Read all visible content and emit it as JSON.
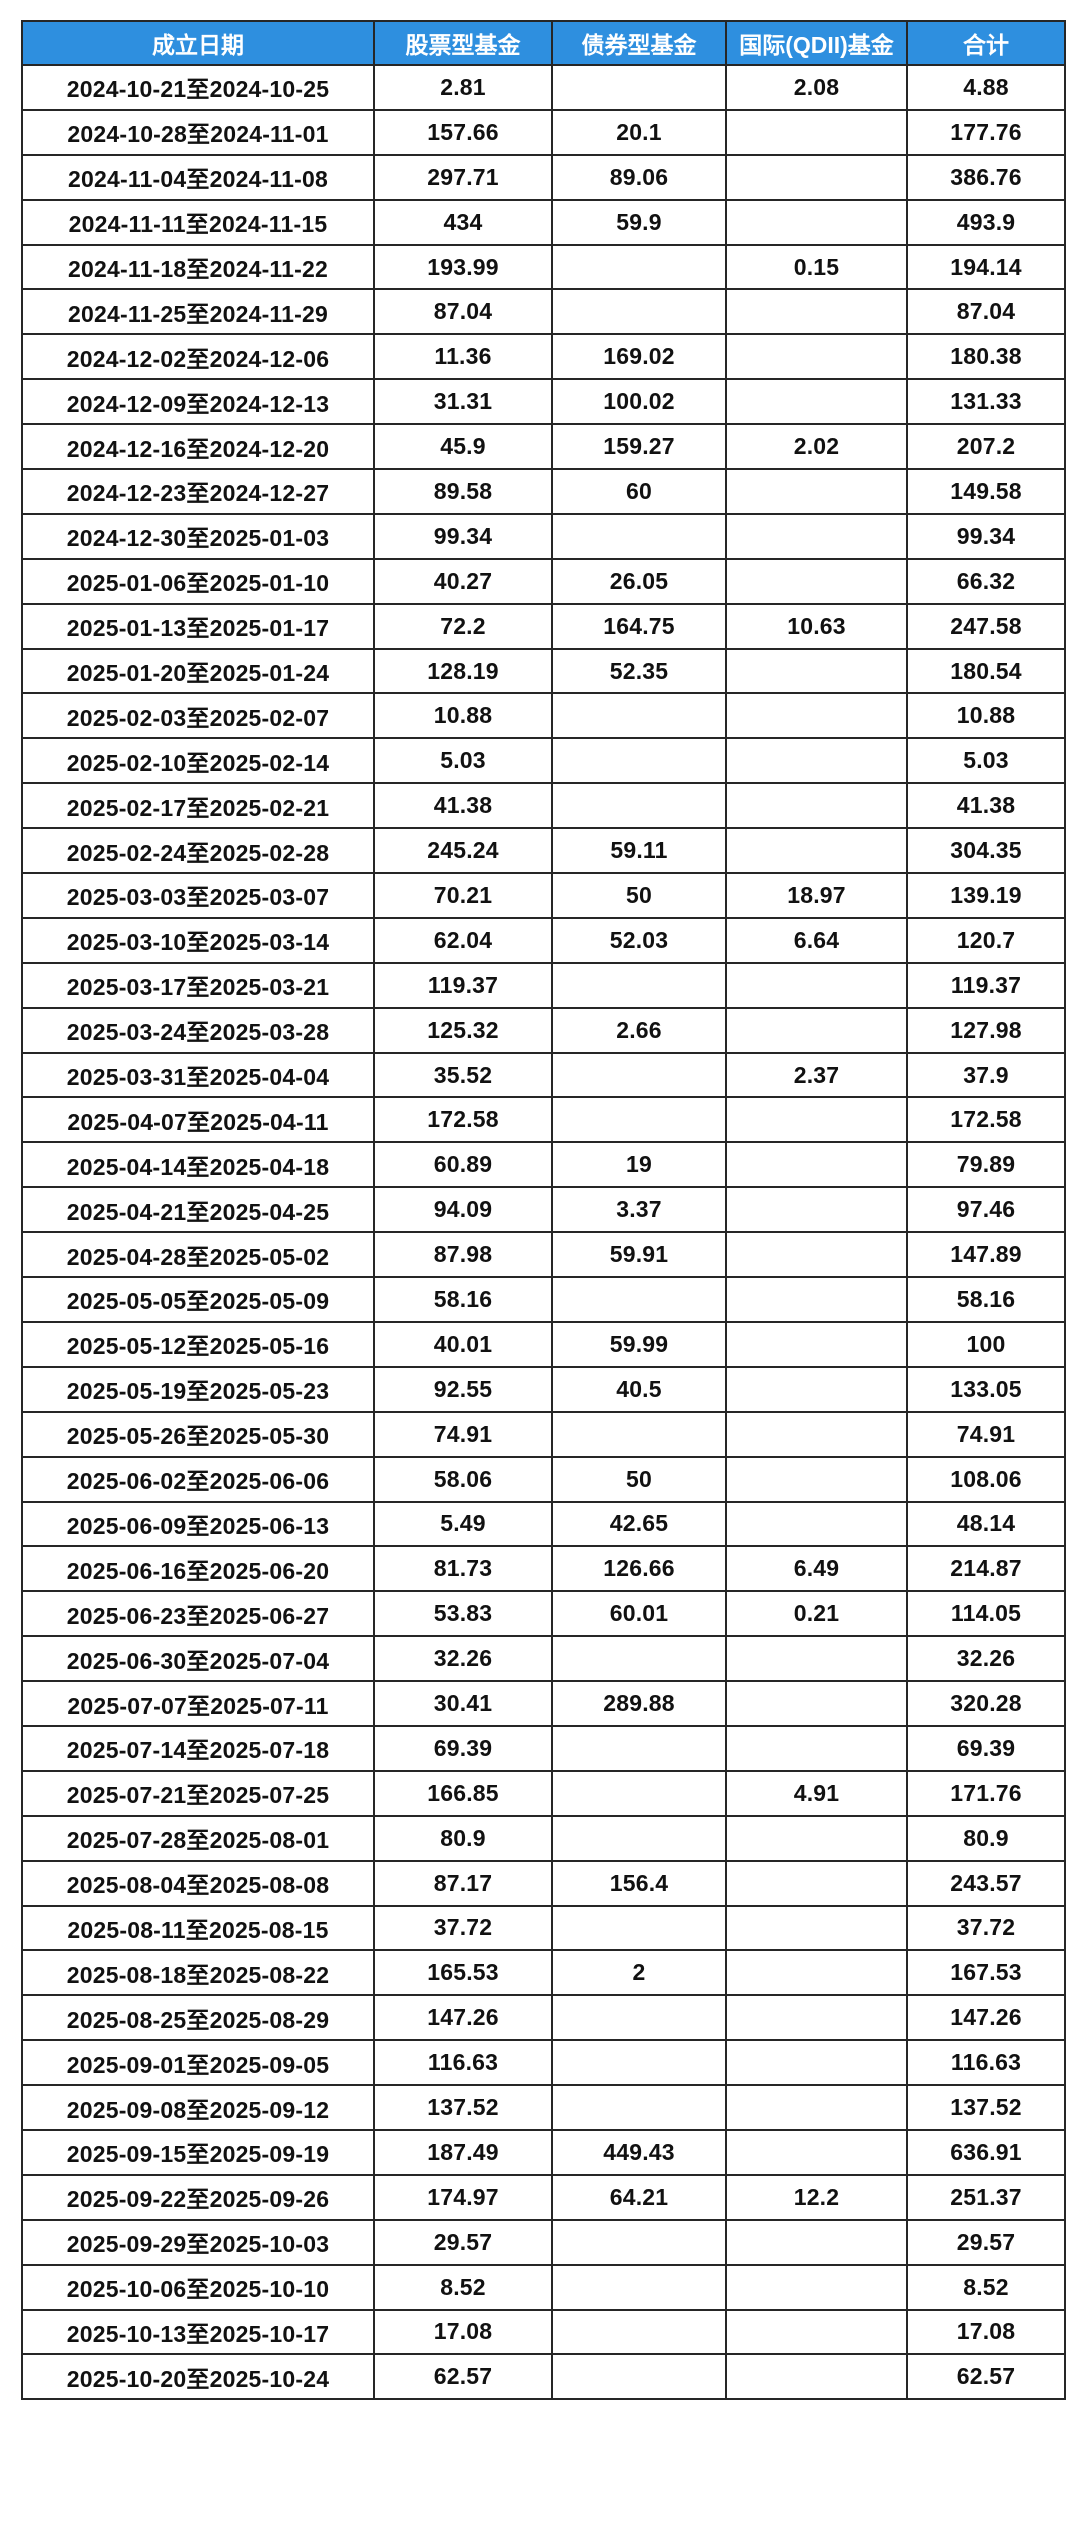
{
  "colors": {
    "header_bg": "#2e8fdf",
    "header_text": "#ffffff",
    "border": "#262626",
    "cell_bg": "#ffffff",
    "text": "#111111"
  },
  "chart_data": {
    "type": "table",
    "title": "",
    "columns": [
      "成立日期",
      "股票型基金",
      "债券型基金",
      "国际(QDII)基金",
      "合计"
    ],
    "rows": [
      [
        "2024-10-21至2024-10-25",
        "2.81",
        "",
        "2.08",
        "4.88"
      ],
      [
        "2024-10-28至2024-11-01",
        "157.66",
        "20.1",
        "",
        "177.76"
      ],
      [
        "2024-11-04至2024-11-08",
        "297.71",
        "89.06",
        "",
        "386.76"
      ],
      [
        "2024-11-11至2024-11-15",
        "434",
        "59.9",
        "",
        "493.9"
      ],
      [
        "2024-11-18至2024-11-22",
        "193.99",
        "",
        "0.15",
        "194.14"
      ],
      [
        "2024-11-25至2024-11-29",
        "87.04",
        "",
        "",
        "87.04"
      ],
      [
        "2024-12-02至2024-12-06",
        "11.36",
        "169.02",
        "",
        "180.38"
      ],
      [
        "2024-12-09至2024-12-13",
        "31.31",
        "100.02",
        "",
        "131.33"
      ],
      [
        "2024-12-16至2024-12-20",
        "45.9",
        "159.27",
        "2.02",
        "207.2"
      ],
      [
        "2024-12-23至2024-12-27",
        "89.58",
        "60",
        "",
        "149.58"
      ],
      [
        "2024-12-30至2025-01-03",
        "99.34",
        "",
        "",
        "99.34"
      ],
      [
        "2025-01-06至2025-01-10",
        "40.27",
        "26.05",
        "",
        "66.32"
      ],
      [
        "2025-01-13至2025-01-17",
        "72.2",
        "164.75",
        "10.63",
        "247.58"
      ],
      [
        "2025-01-20至2025-01-24",
        "128.19",
        "52.35",
        "",
        "180.54"
      ],
      [
        "2025-02-03至2025-02-07",
        "10.88",
        "",
        "",
        "10.88"
      ],
      [
        "2025-02-10至2025-02-14",
        "5.03",
        "",
        "",
        "5.03"
      ],
      [
        "2025-02-17至2025-02-21",
        "41.38",
        "",
        "",
        "41.38"
      ],
      [
        "2025-02-24至2025-02-28",
        "245.24",
        "59.11",
        "",
        "304.35"
      ],
      [
        "2025-03-03至2025-03-07",
        "70.21",
        "50",
        "18.97",
        "139.19"
      ],
      [
        "2025-03-10至2025-03-14",
        "62.04",
        "52.03",
        "6.64",
        "120.7"
      ],
      [
        "2025-03-17至2025-03-21",
        "119.37",
        "",
        "",
        "119.37"
      ],
      [
        "2025-03-24至2025-03-28",
        "125.32",
        "2.66",
        "",
        "127.98"
      ],
      [
        "2025-03-31至2025-04-04",
        "35.52",
        "",
        "2.37",
        "37.9"
      ],
      [
        "2025-04-07至2025-04-11",
        "172.58",
        "",
        "",
        "172.58"
      ],
      [
        "2025-04-14至2025-04-18",
        "60.89",
        "19",
        "",
        "79.89"
      ],
      [
        "2025-04-21至2025-04-25",
        "94.09",
        "3.37",
        "",
        "97.46"
      ],
      [
        "2025-04-28至2025-05-02",
        "87.98",
        "59.91",
        "",
        "147.89"
      ],
      [
        "2025-05-05至2025-05-09",
        "58.16",
        "",
        "",
        "58.16"
      ],
      [
        "2025-05-12至2025-05-16",
        "40.01",
        "59.99",
        "",
        "100"
      ],
      [
        "2025-05-19至2025-05-23",
        "92.55",
        "40.5",
        "",
        "133.05"
      ],
      [
        "2025-05-26至2025-05-30",
        "74.91",
        "",
        "",
        "74.91"
      ],
      [
        "2025-06-02至2025-06-06",
        "58.06",
        "50",
        "",
        "108.06"
      ],
      [
        "2025-06-09至2025-06-13",
        "5.49",
        "42.65",
        "",
        "48.14"
      ],
      [
        "2025-06-16至2025-06-20",
        "81.73",
        "126.66",
        "6.49",
        "214.87"
      ],
      [
        "2025-06-23至2025-06-27",
        "53.83",
        "60.01",
        "0.21",
        "114.05"
      ],
      [
        "2025-06-30至2025-07-04",
        "32.26",
        "",
        "",
        "32.26"
      ],
      [
        "2025-07-07至2025-07-11",
        "30.41",
        "289.88",
        "",
        "320.28"
      ],
      [
        "2025-07-14至2025-07-18",
        "69.39",
        "",
        "",
        "69.39"
      ],
      [
        "2025-07-21至2025-07-25",
        "166.85",
        "",
        "4.91",
        "171.76"
      ],
      [
        "2025-07-28至2025-08-01",
        "80.9",
        "",
        "",
        "80.9"
      ],
      [
        "2025-08-04至2025-08-08",
        "87.17",
        "156.4",
        "",
        "243.57"
      ],
      [
        "2025-08-11至2025-08-15",
        "37.72",
        "",
        "",
        "37.72"
      ],
      [
        "2025-08-18至2025-08-22",
        "165.53",
        "2",
        "",
        "167.53"
      ],
      [
        "2025-08-25至2025-08-29",
        "147.26",
        "",
        "",
        "147.26"
      ],
      [
        "2025-09-01至2025-09-05",
        "116.63",
        "",
        "",
        "116.63"
      ],
      [
        "2025-09-08至2025-09-12",
        "137.52",
        "",
        "",
        "137.52"
      ],
      [
        "2025-09-15至2025-09-19",
        "187.49",
        "449.43",
        "",
        "636.91"
      ],
      [
        "2025-09-22至2025-09-26",
        "174.97",
        "64.21",
        "12.2",
        "251.37"
      ],
      [
        "2025-09-29至2025-10-03",
        "29.57",
        "",
        "",
        "29.57"
      ],
      [
        "2025-10-06至2025-10-10",
        "8.52",
        "",
        "",
        "8.52"
      ],
      [
        "2025-10-13至2025-10-17",
        "17.08",
        "",
        "",
        "17.08"
      ],
      [
        "2025-10-20至2025-10-24",
        "62.57",
        "",
        "",
        "62.57"
      ]
    ]
  }
}
